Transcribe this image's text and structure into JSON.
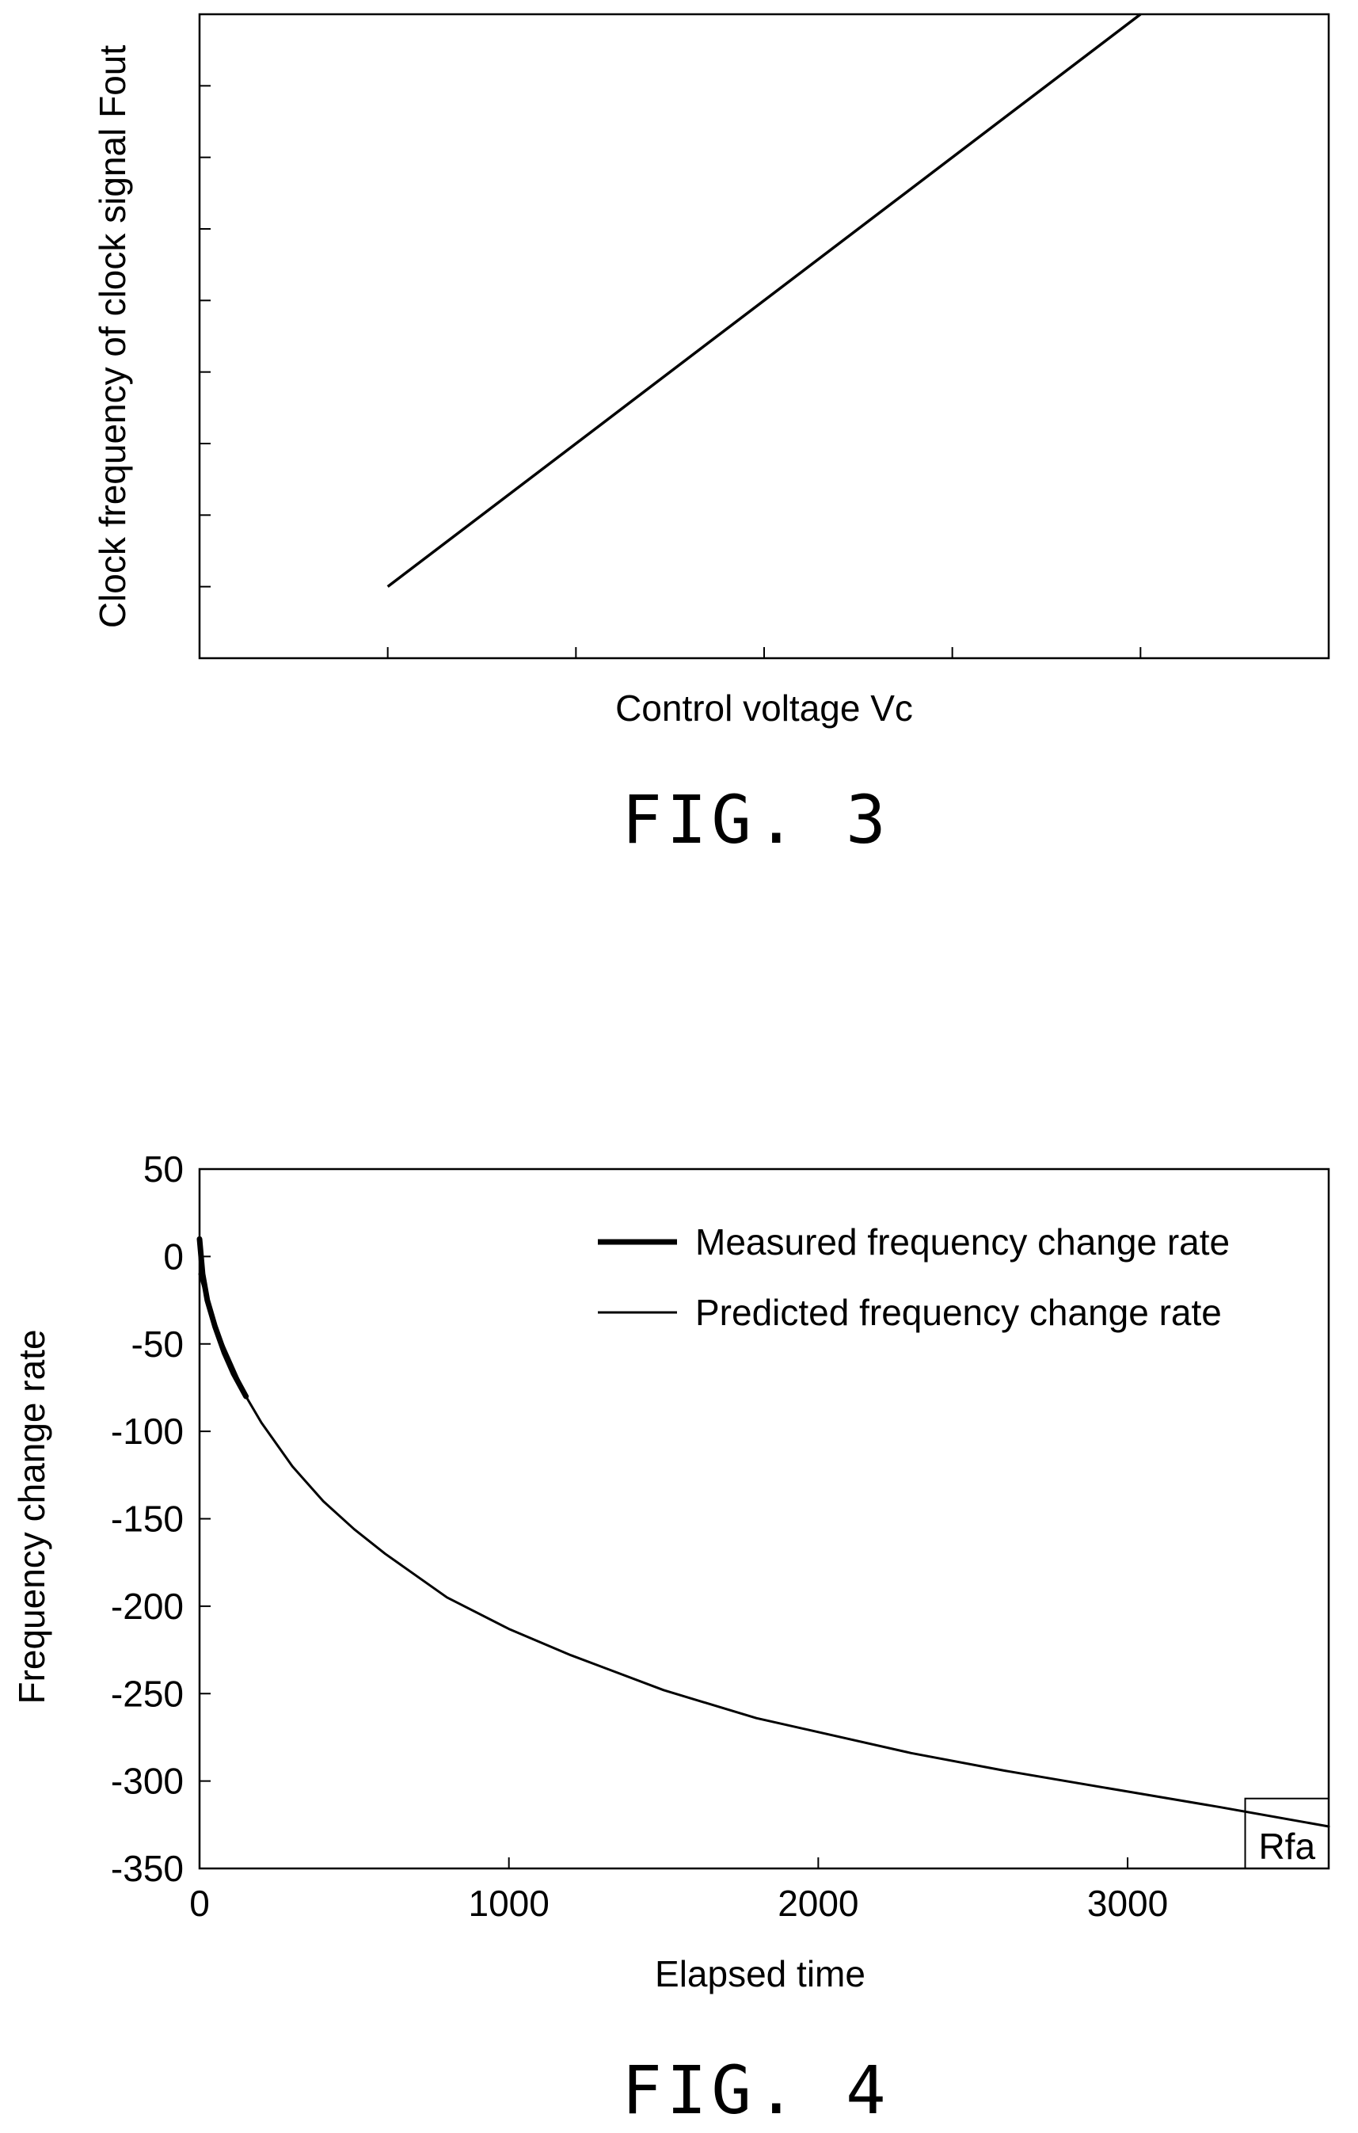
{
  "chart_data": [
    {
      "type": "line",
      "caption": "FIG. 3",
      "xlabel": "Control voltage Vc",
      "ylabel": "Clock frequency of clock signal Fout",
      "x_tick_count": 6,
      "y_tick_count": 9,
      "x_tick_labels": [],
      "y_tick_labels": [],
      "xlim": [
        0,
        6
      ],
      "ylim": [
        0,
        9
      ],
      "grid": false,
      "series": [
        {
          "x": [
            1,
            5
          ],
          "y": [
            1,
            9
          ]
        }
      ]
    },
    {
      "type": "line",
      "caption": "FIG. 4",
      "xlabel": "Elapsed time",
      "ylabel": "Frequency change rate",
      "xlim": [
        0,
        3650
      ],
      "ylim": [
        -350,
        50
      ],
      "x_ticks": [
        0,
        1000,
        2000,
        3000
      ],
      "y_ticks": [
        50,
        0,
        -50,
        -100,
        -150,
        -200,
        -250,
        -300,
        -350
      ],
      "grid": false,
      "legend_position": "top-right",
      "series": [
        {
          "name": "Measured frequency change rate",
          "style": "thick",
          "x": [
            0,
            10,
            25,
            50,
            80,
            110,
            150
          ],
          "y": [
            10,
            -10,
            -25,
            -40,
            -55,
            -67,
            -80
          ]
        },
        {
          "name": "Predicted frequency change rate",
          "style": "thin",
          "x": [
            0,
            25,
            50,
            100,
            150,
            200,
            300,
            400,
            500,
            600,
            800,
            1000,
            1200,
            1500,
            1800,
            2000,
            2300,
            2600,
            3000,
            3300,
            3650
          ],
          "y": [
            -10,
            -25,
            -40,
            -60,
            -80,
            -95,
            -120,
            -140,
            -156,
            -170,
            -195,
            -213,
            -228,
            -248,
            -264,
            -272,
            -284,
            -294,
            -306,
            -315,
            -326
          ]
        }
      ],
      "annotations": [
        {
          "text": "Rfa",
          "x_range": [
            3380,
            3650
          ],
          "y_range": [
            -350,
            -310
          ]
        }
      ]
    }
  ]
}
